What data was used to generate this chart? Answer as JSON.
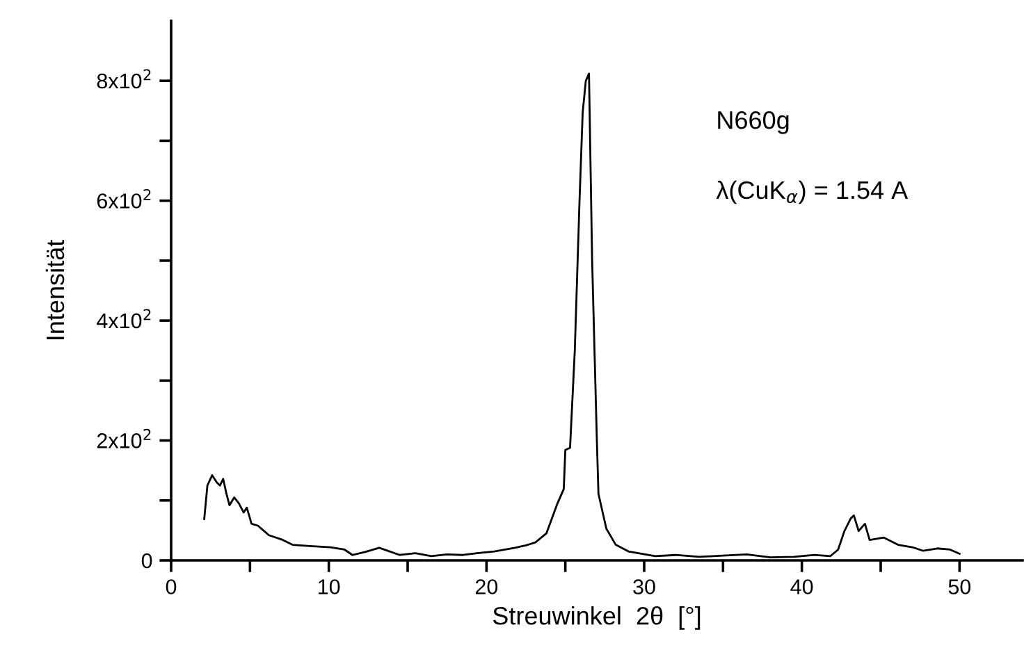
{
  "chart_data": {
    "type": "line",
    "xlabel": "Streuwinkel  2θ  [°]",
    "ylabel": "Intensität",
    "xlim": [
      0,
      54
    ],
    "ylim": [
      0,
      900
    ],
    "xticks": [
      0,
      {
        "value": 5,
        "label": null
      },
      10,
      {
        "value": 15,
        "label": null
      },
      20,
      {
        "value": 25,
        "label": null
      },
      30,
      {
        "value": 35,
        "label": null
      },
      40,
      {
        "value": 45,
        "label": null
      },
      50
    ],
    "yticks": [
      {
        "value": 0,
        "label": "0"
      },
      {
        "value": 100,
        "label": null
      },
      {
        "value": 200,
        "label": "2x10$^{2}$"
      },
      {
        "value": 300,
        "label": null
      },
      {
        "value": 400,
        "label": "4x10$^{2}$"
      },
      {
        "value": 500,
        "label": null
      },
      {
        "value": 600,
        "label": "6x10$^{2}$"
      },
      {
        "value": 700,
        "label": null
      },
      {
        "value": 800,
        "label": "8x10$^{2}$"
      }
    ],
    "grid": false,
    "legend": false,
    "marker": "none",
    "line_style": "solid",
    "annotations": [
      "N660g",
      "λ(CuK$_{α}$) = 1.54 A"
    ],
    "series": [
      {
        "color": "#000000",
        "x": [
          2.1,
          2.3,
          2.6,
          2.9,
          3.1,
          3.3,
          3.5,
          3.7,
          4.0,
          4.3,
          4.6,
          4.8,
          5.1,
          5.5,
          6.2,
          7.0,
          7.7,
          8.8,
          10.1,
          11.0,
          11.5,
          12.3,
          13.2,
          14.5,
          15.5,
          16.5,
          17.5,
          18.5,
          19.4,
          20.5,
          21.8,
          22.5,
          23.1,
          23.8,
          24.5,
          24.9,
          25.0,
          25.3,
          25.6,
          25.9,
          26.1,
          26.3,
          26.5,
          26.7,
          27.0,
          27.1,
          27.6,
          28.2,
          29.0,
          30.7,
          32.0,
          33.5,
          35.0,
          36.5,
          38.0,
          39.5,
          40.8,
          41.8,
          42.3,
          42.7,
          43.1,
          43.3,
          43.6,
          44.0,
          44.3,
          45.2,
          46.1,
          47.0,
          47.7,
          48.6,
          49.4,
          50.0
        ],
        "values": [
          69,
          125,
          142,
          130,
          125,
          136,
          112,
          92,
          105,
          95,
          80,
          88,
          61,
          58,
          42,
          35,
          26,
          24,
          22,
          18,
          9,
          14,
          21,
          9,
          12,
          7,
          10,
          9,
          12,
          15,
          21,
          25,
          30,
          45,
          95,
          119,
          184,
          188,
          350,
          600,
          747,
          800,
          812,
          500,
          200,
          111,
          53,
          26,
          15,
          7,
          9,
          6,
          8,
          10,
          5,
          6,
          9,
          7,
          18,
          49,
          70,
          75,
          49,
          61,
          34,
          38,
          26,
          22,
          16,
          20,
          18,
          11
        ]
      }
    ]
  }
}
